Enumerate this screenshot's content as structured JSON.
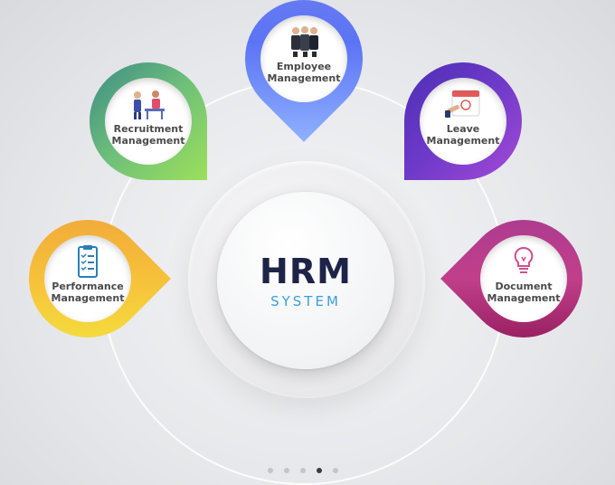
{
  "center": {
    "title": "HRM",
    "subtitle": "SYSTEM"
  },
  "modules": [
    {
      "id": "employee",
      "line1": "Employee",
      "line2": "Management",
      "icon": "people-icon"
    },
    {
      "id": "recruitment",
      "line1": "Recruitment",
      "line2": "Management",
      "icon": "interview-icon"
    },
    {
      "id": "leave",
      "line1": "Leave",
      "line2": "Management",
      "icon": "calendar-icon"
    },
    {
      "id": "performance",
      "line1": "Performance",
      "line2": "Management",
      "icon": "clipboard-checklist-icon"
    },
    {
      "id": "document",
      "line1": "Document",
      "line2": "Management",
      "icon": "lightbulb-icon"
    }
  ],
  "pagination": {
    "count": 5,
    "active_index": 3
  },
  "colors": {
    "title": "#1d2447",
    "subtitle": "#3aa0d8",
    "employee": "#6c7cf0",
    "recruitment": "#6fc07a",
    "leave": "#6f3ac9",
    "performance": "#f6c13a",
    "document": "#c13f8a"
  }
}
